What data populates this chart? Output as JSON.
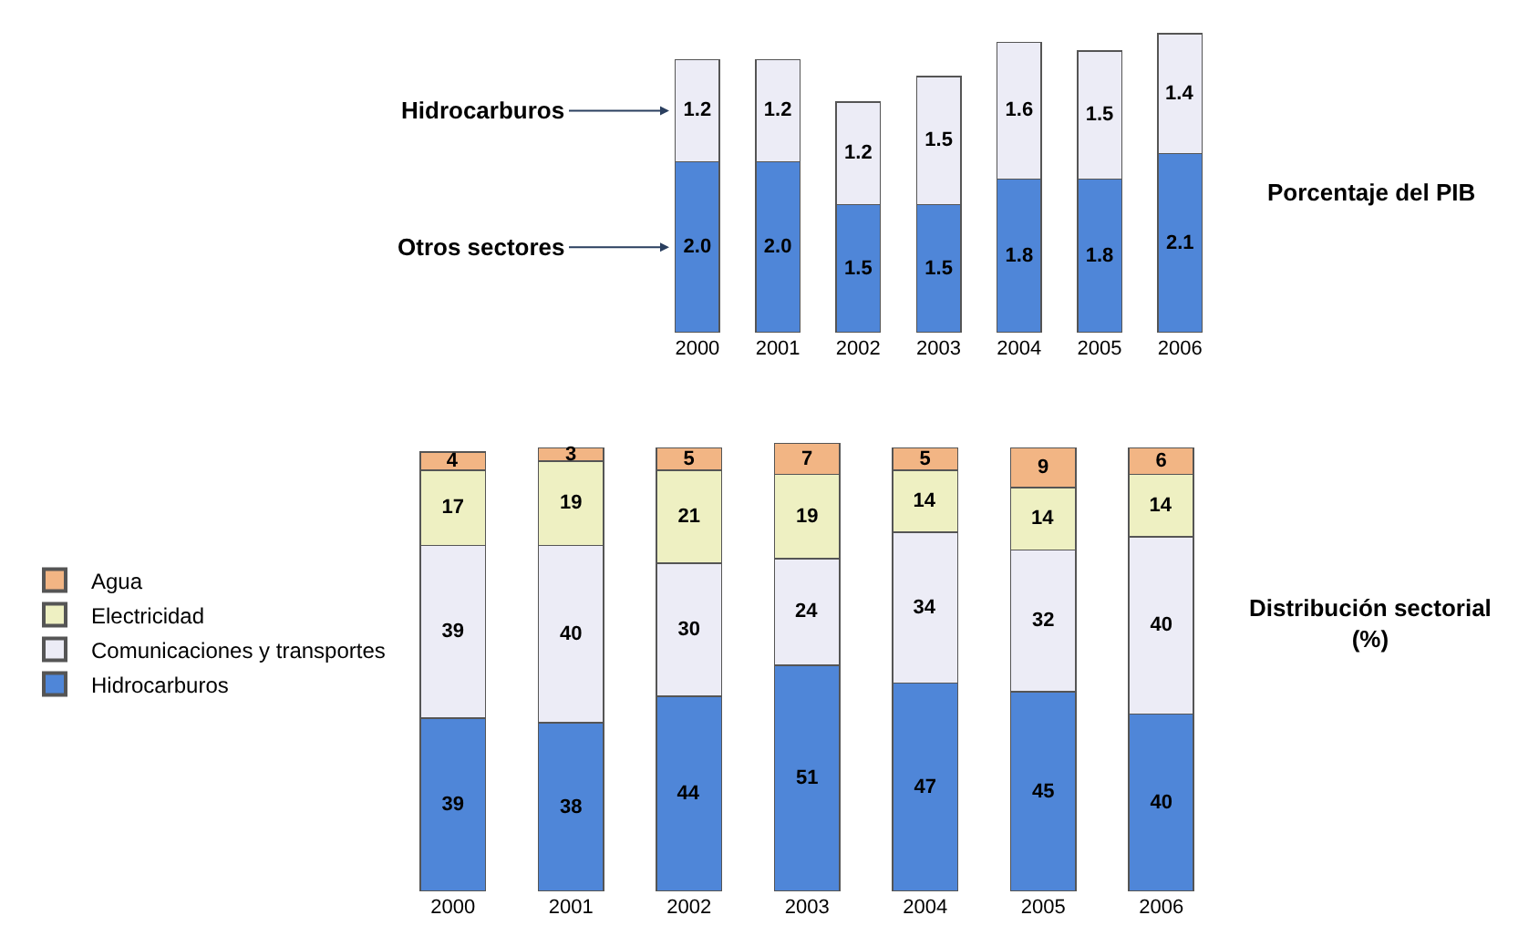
{
  "chart_data": [
    {
      "type": "bar",
      "annotations": [
        "Porcentaje del PIB"
      ],
      "stacked": true,
      "legend": false,
      "categories": [
        "2000",
        "2001",
        "2002",
        "2003",
        "2004",
        "2005",
        "2006"
      ],
      "series": [
        {
          "name": "Otros sectores",
          "color": "#4f86d8",
          "values": [
            2.0,
            2.0,
            1.5,
            1.5,
            1.8,
            1.8,
            2.1
          ],
          "value_labels": [
            "2.0",
            "2.0",
            "1.5",
            "1.5",
            "1.8",
            "1.8",
            "2.1"
          ]
        },
        {
          "name": "Hidrocarburos",
          "color": "#ececf6",
          "values": [
            1.2,
            1.2,
            1.2,
            1.5,
            1.6,
            1.5,
            1.4
          ],
          "value_labels": [
            "1.2",
            "1.2",
            "1.2",
            "1.5",
            "1.6",
            "1.5",
            "1.4"
          ]
        }
      ]
    },
    {
      "type": "bar",
      "annotations": [
        "Distribución sectorial (%)"
      ],
      "stacked": true,
      "data_labels": true,
      "legend": "left",
      "categories": [
        "2000",
        "2001",
        "2002",
        "2003",
        "2004",
        "2005",
        "2006"
      ],
      "series": [
        {
          "name": "Hidrocarburos",
          "color": "#4f86d8",
          "values": [
            39,
            38,
            44,
            51,
            47,
            45,
            40
          ]
        },
        {
          "name": "Comunicaciones y transportes",
          "color": "#ececf6",
          "values": [
            39,
            40,
            30,
            24,
            34,
            32,
            40
          ]
        },
        {
          "name": "Electricidad",
          "color": "#eef0c2",
          "values": [
            17,
            19,
            21,
            19,
            14,
            14,
            14
          ]
        },
        {
          "name": "Agua",
          "color": "#f2b584",
          "values": [
            4,
            3,
            5,
            7,
            5,
            9,
            6
          ]
        }
      ]
    }
  ]
}
